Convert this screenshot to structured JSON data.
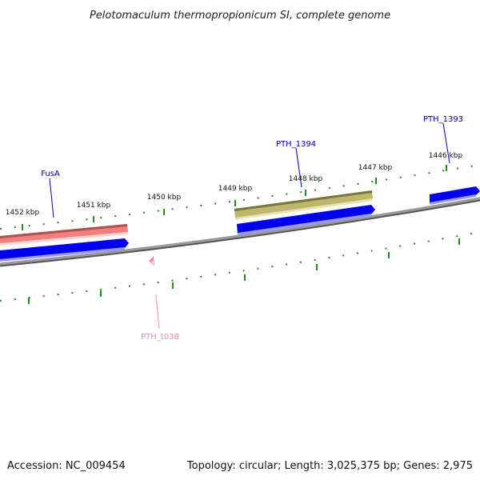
{
  "title": "Pelotomaculum thermopropionicum SI, complete genome",
  "footer": {
    "accession": "Accession: NC_009454",
    "topology": "Topology: circular; Length: 3,025,375 bp; Genes: 2,975"
  },
  "kbp_labels": [
    "1452 kbp",
    "1451 kbp",
    "1450 kbp",
    "1449 kbp",
    "1448 kbp",
    "1447 kbp",
    "1446 kbp"
  ],
  "gene_labels": [
    {
      "name": "FusA",
      "color": "#0000aa"
    },
    {
      "name": "PTH_1394",
      "color": "#0000aa"
    },
    {
      "name": "PTH_1393",
      "color": "#0000aa"
    },
    {
      "name": "PTH_t038",
      "color": "#ee88bb"
    }
  ],
  "colors": {
    "backbone": "#808080",
    "cds": "#0000ee",
    "rrna": "#f08080",
    "gene_olive": "#bdb76b",
    "trna": "#ee88bb",
    "tick": "#228b22"
  }
}
